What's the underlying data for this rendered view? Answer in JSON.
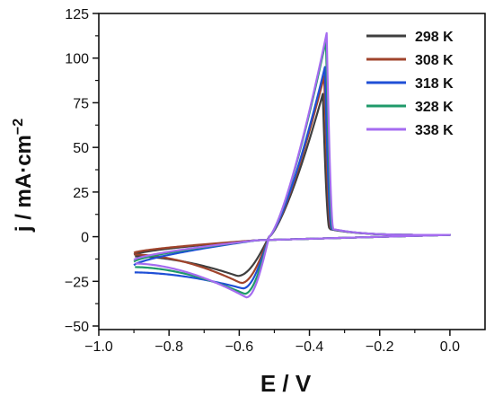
{
  "chart_data": {
    "type": "line",
    "xlabel": "E / V",
    "ylabel_main": "j / mA·cm",
    "ylabel_sup": "−2",
    "xlim": [
      -1.0,
      0.1
    ],
    "ylim": [
      -52,
      125
    ],
    "x_ticks": [
      -1.0,
      -0.8,
      -0.6,
      -0.4,
      -0.2,
      0.0
    ],
    "x_tick_labels": [
      "−1.0",
      "−0.8",
      "−0.6",
      "−0.4",
      "−0.2",
      "0.0"
    ],
    "y_ticks": [
      -50,
      -25,
      0,
      25,
      50,
      75,
      100,
      125
    ],
    "y_tick_labels": [
      "−50",
      "−25",
      "0",
      "25",
      "50",
      "75",
      "100",
      "125"
    ],
    "grid": false,
    "legend_position": "top-right",
    "series": [
      {
        "name": "298 K",
        "color": "#3f3f3f",
        "x_start": -0.9,
        "j_start": -11,
        "peak_x": -0.362,
        "peak_j": 80,
        "cath_x": -0.605,
        "cath_j": -22,
        "lower_start": -10
      },
      {
        "name": "308 K",
        "color": "#a0442c",
        "x_start": -0.9,
        "j_start": -10,
        "peak_x": -0.358,
        "peak_j": 90,
        "cath_x": -0.595,
        "cath_j": -26,
        "lower_start": -9
      },
      {
        "name": "318 K",
        "color": "#1f4fd6",
        "x_start": -0.9,
        "j_start": -20,
        "peak_x": -0.356,
        "peak_j": 95,
        "cath_x": -0.59,
        "cath_j": -29,
        "lower_start": -16
      },
      {
        "name": "328 K",
        "color": "#1f9a6a",
        "x_start": -0.9,
        "j_start": -17,
        "peak_x": -0.353,
        "peak_j": 110,
        "cath_x": -0.585,
        "cath_j": -32,
        "lower_start": -14
      },
      {
        "name": "338 K",
        "color": "#a56cf0",
        "x_start": -0.9,
        "j_start": -15,
        "peak_x": -0.351,
        "peak_j": 114,
        "cath_x": -0.58,
        "cath_j": -34,
        "lower_start": -13
      }
    ]
  }
}
